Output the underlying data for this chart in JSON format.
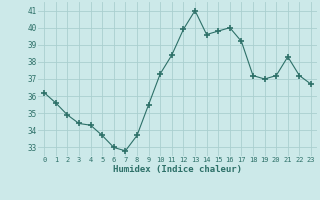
{
  "x": [
    0,
    1,
    2,
    3,
    4,
    5,
    6,
    7,
    8,
    9,
    10,
    11,
    12,
    13,
    14,
    15,
    16,
    17,
    18,
    19,
    20,
    21,
    22,
    23
  ],
  "y": [
    36.2,
    35.6,
    34.9,
    34.4,
    34.3,
    33.7,
    33.0,
    32.8,
    33.7,
    35.5,
    37.3,
    38.4,
    39.9,
    41.0,
    39.6,
    39.8,
    40.0,
    39.2,
    37.2,
    37.0,
    37.2,
    38.3,
    37.2,
    36.7
  ],
  "line_color": "#2d7068",
  "marker": "+",
  "marker_size": 4,
  "bg_color": "#cce9e9",
  "grid_color": "#aacfcf",
  "tick_color": "#2d7068",
  "xlabel": "Humidex (Indice chaleur)",
  "xlim": [
    -0.5,
    23.5
  ],
  "ylim": [
    32.5,
    41.5
  ],
  "yticks": [
    33,
    34,
    35,
    36,
    37,
    38,
    39,
    40,
    41
  ],
  "xticks": [
    0,
    1,
    2,
    3,
    4,
    5,
    6,
    7,
    8,
    9,
    10,
    11,
    12,
    13,
    14,
    15,
    16,
    17,
    18,
    19,
    20,
    21,
    22,
    23
  ]
}
